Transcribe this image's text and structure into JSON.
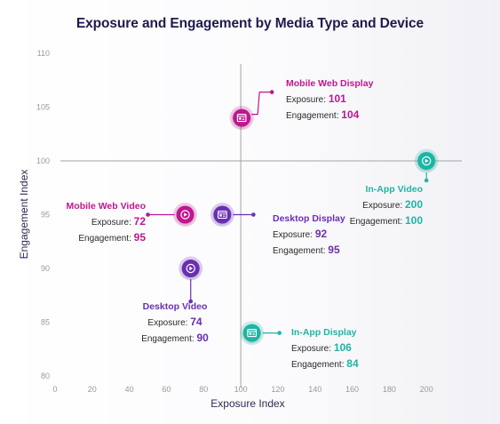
{
  "chart_data": {
    "type": "scatter",
    "title": "Exposure and Engagement by Media Type and Device",
    "xlabel": "Exposure Index",
    "ylabel": "Engagement Index",
    "xlim": [
      0,
      220
    ],
    "ylim": [
      80,
      110
    ],
    "xticks": [
      0,
      20,
      40,
      60,
      80,
      100,
      120,
      140,
      160,
      180,
      200
    ],
    "yticks": [
      80,
      85,
      90,
      95,
      100,
      105,
      110
    ],
    "reference_lines": {
      "x": 100,
      "y": 100
    },
    "exposure_label": "Exposure:",
    "engagement_label": "Engagement:",
    "points": [
      {
        "name": "Mobile Web Display",
        "x": 101,
        "y": 104,
        "color": "#c0168f",
        "icon": "display-icon"
      },
      {
        "name": "In-App Video",
        "x": 200,
        "y": 100,
        "color": "#1fb5a5",
        "icon": "play-icon"
      },
      {
        "name": "Mobile Web Video",
        "x": 72,
        "y": 95,
        "color": "#c0168f",
        "icon": "play-icon"
      },
      {
        "name": "Desktop Display",
        "x": 92,
        "y": 95,
        "color": "#6a2fb3",
        "icon": "display-icon"
      },
      {
        "name": "Desktop Video",
        "x": 74,
        "y": 90,
        "color": "#6a2fb3",
        "icon": "play-icon"
      },
      {
        "name": "In-App Display",
        "x": 106,
        "y": 84,
        "color": "#1fb5a5",
        "icon": "display-icon"
      }
    ]
  }
}
